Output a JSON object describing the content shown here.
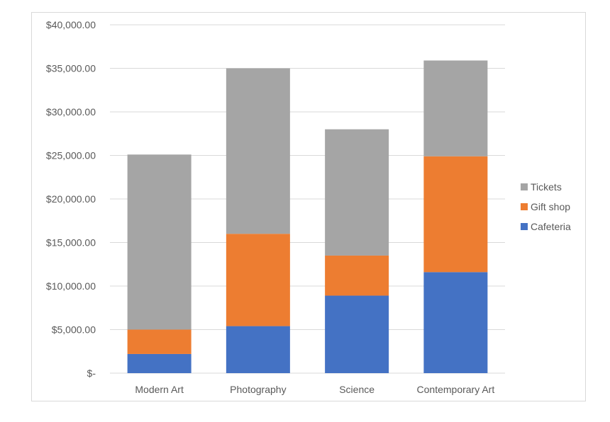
{
  "chart_data": {
    "type": "bar",
    "stacked": true,
    "categories": [
      "Modern Art",
      "Photography",
      "Science",
      "Contemporary Art"
    ],
    "series": [
      {
        "name": "Cafeteria",
        "color": "#4472c4",
        "values": [
          2200,
          5400,
          8900,
          11600
        ]
      },
      {
        "name": "Gift shop",
        "color": "#ed7d31",
        "values": [
          2800,
          10600,
          4600,
          13300
        ]
      },
      {
        "name": "Tickets",
        "color": "#a5a5a5",
        "values": [
          20100,
          19000,
          14500,
          11000
        ]
      }
    ],
    "ylim": [
      0,
      40000
    ],
    "yticks": [
      0,
      5000,
      10000,
      15000,
      20000,
      25000,
      30000,
      35000,
      40000
    ],
    "ytick_labels": [
      "$-",
      "$5,000.00",
      "$10,000.00",
      "$15,000.00",
      "$20,000.00",
      "$25,000.00",
      "$30,000.00",
      "$35,000.00",
      "$40,000.00"
    ],
    "grid": true,
    "legend_position": "right",
    "legend_order": [
      "Tickets",
      "Gift shop",
      "Cafeteria"
    ],
    "title": "",
    "xlabel": "",
    "ylabel": ""
  }
}
